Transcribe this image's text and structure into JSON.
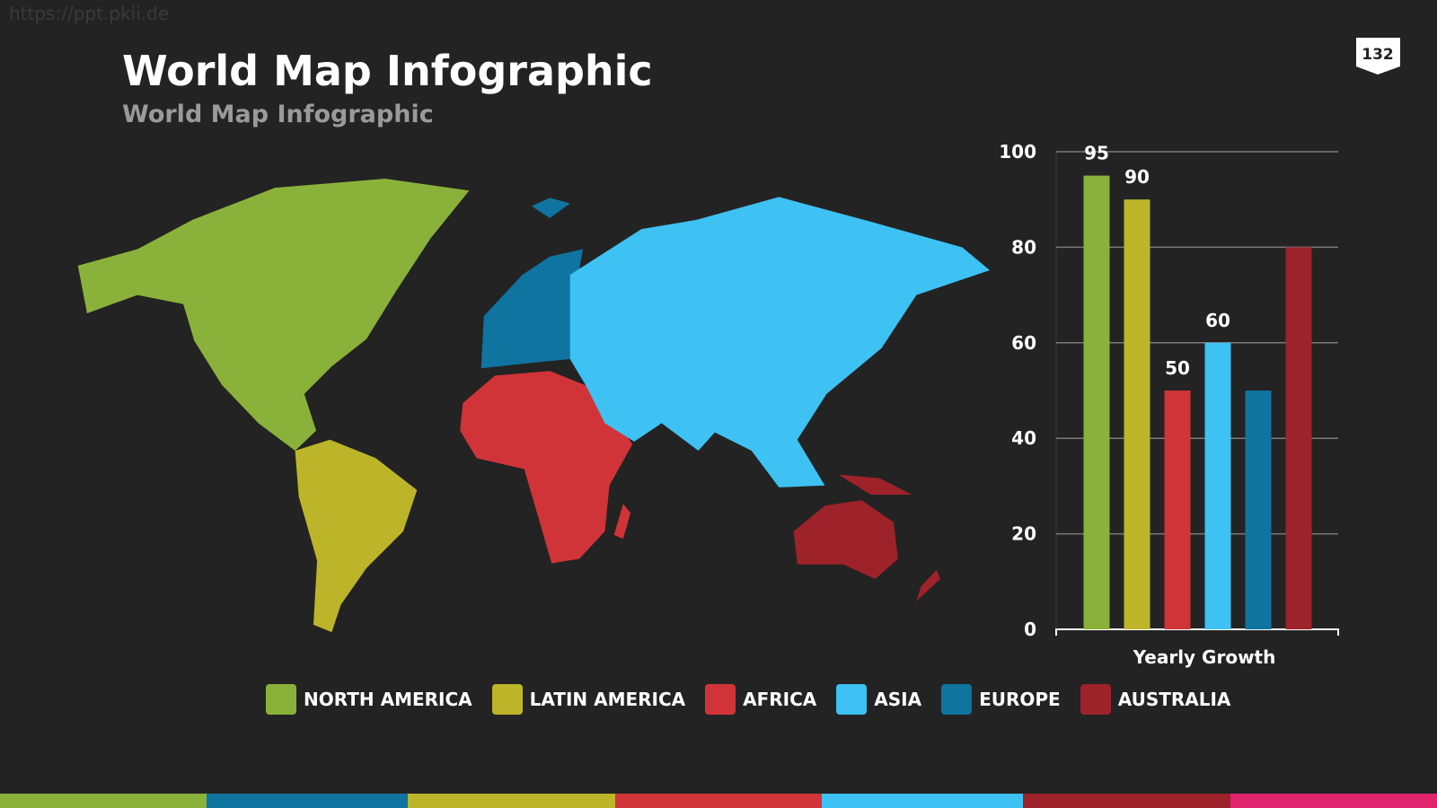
{
  "watermark": "https://ppt.pkii.de",
  "page_number": "132",
  "title": "World Map Infographic",
  "subtitle": "World Map Infographic",
  "chart_data": {
    "type": "bar",
    "xlabel": "Yearly Growth",
    "categories": [
      null
    ],
    "series": [
      {
        "name": "NORTH AMERICA",
        "color": "#8ab23a",
        "values": [
          95
        ],
        "data_labels": true
      },
      {
        "name": "LATIN AMERICA",
        "color": "#bcb52a",
        "values": [
          90
        ],
        "data_labels": true
      },
      {
        "name": "AFRICA",
        "color": "#d13438",
        "values": [
          50
        ],
        "data_labels": true
      },
      {
        "name": "ASIA",
        "color": "#3ec1f3",
        "values": [
          60
        ],
        "data_labels": true
      },
      {
        "name": "EUROPE",
        "color": "#0f74a0",
        "values": [
          50
        ],
        "data_labels": false
      },
      {
        "name": "AUSTRALIA",
        "color": "#9e2229",
        "values": [
          80
        ],
        "data_labels": false
      }
    ],
    "ylim": [
      0,
      100
    ],
    "yticks": [
      0,
      20,
      40,
      60,
      80,
      100
    ],
    "grid": true,
    "legend": "bottom"
  }
}
